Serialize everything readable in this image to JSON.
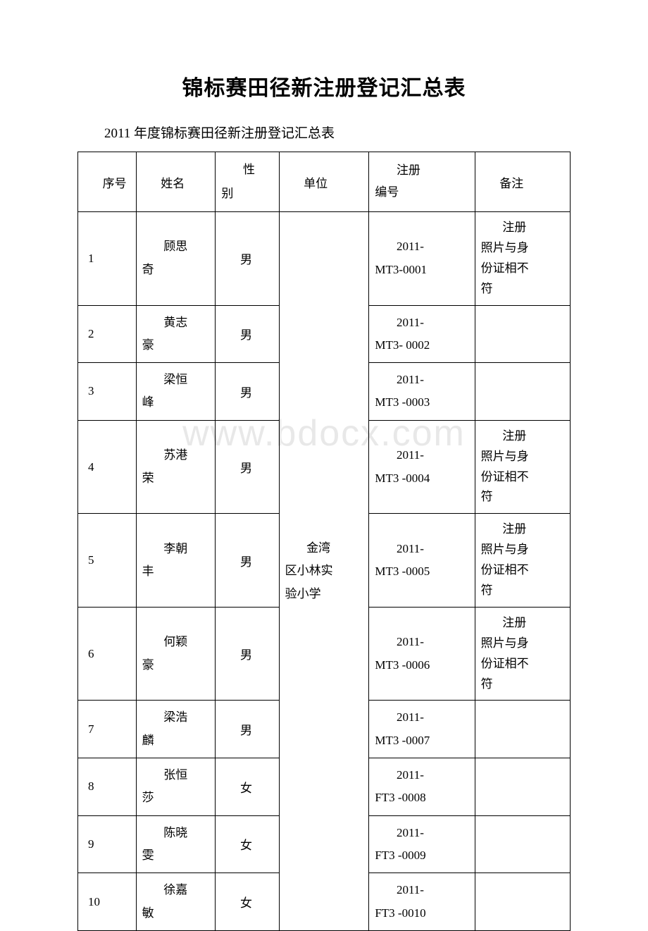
{
  "document": {
    "title": "锦标赛田径新注册登记汇总表",
    "subtitle": "2011 年度锦标赛田径新注册登记汇总表",
    "watermark": "www.bdocx.com",
    "table": {
      "columns": {
        "seq": "序号",
        "name": "姓名",
        "gender_l1": "性",
        "gender_l2": "别",
        "unit": "单位",
        "regno_l1": "注册",
        "regno_l2": "编号",
        "note": "备注"
      },
      "unit_merged_l1": "金湾",
      "unit_merged_l2": "区小林实",
      "unit_merged_l3": "验小学",
      "rows": [
        {
          "seq": "1",
          "name_l1": "顾思",
          "name_l2": "奇",
          "gender": "男",
          "reg_l1": "2011-",
          "reg_l2": "MT3-0001",
          "note_l1": "注册",
          "note_l2": "照片与身",
          "note_l3": "份证相不",
          "note_l4": "符",
          "has_note": true
        },
        {
          "seq": "2",
          "name_l1": "黄志",
          "name_l2": "豪",
          "gender": "男",
          "reg_l1": "2011-",
          "reg_l2": "MT3- 0002",
          "has_note": false
        },
        {
          "seq": "3",
          "name_l1": "梁恒",
          "name_l2": "峰",
          "gender": "男",
          "reg_l1": "2011-",
          "reg_l2": "MT3 -0003",
          "has_note": false
        },
        {
          "seq": "4",
          "name_l1": "苏港",
          "name_l2": "荣",
          "gender": "男",
          "reg_l1": "2011-",
          "reg_l2": "MT3 -0004",
          "note_l1": "注册",
          "note_l2": "照片与身",
          "note_l3": "份证相不",
          "note_l4": "符",
          "has_note": true
        },
        {
          "seq": "5",
          "name_l1": "李朝",
          "name_l2": "丰",
          "gender": "男",
          "reg_l1": "2011-",
          "reg_l2": "MT3 -0005",
          "note_l1": "注册",
          "note_l2": "照片与身",
          "note_l3": "份证相不",
          "note_l4": "符",
          "has_note": true
        },
        {
          "seq": "6",
          "name_l1": "何颖",
          "name_l2": "豪",
          "gender": "男",
          "reg_l1": "2011-",
          "reg_l2": "MT3 -0006",
          "note_l1": "注册",
          "note_l2": "照片与身",
          "note_l3": "份证相不",
          "note_l4": "符",
          "has_note": true
        },
        {
          "seq": "7",
          "name_l1": "梁浩",
          "name_l2": "麟",
          "gender": "男",
          "reg_l1": "2011-",
          "reg_l2": "MT3 -0007",
          "has_note": false
        },
        {
          "seq": "8",
          "name_l1": "张恒",
          "name_l2": "莎",
          "gender": "女",
          "reg_l1": "2011-",
          "reg_l2": "FT3 -0008",
          "has_note": false
        },
        {
          "seq": "9",
          "name_l1": "陈晓",
          "name_l2": "雯",
          "gender": "女",
          "reg_l1": "2011-",
          "reg_l2": "FT3 -0009",
          "has_note": false
        },
        {
          "seq": "10",
          "name_l1": "徐嘉",
          "name_l2": "敏",
          "gender": "女",
          "reg_l1": "2011-",
          "reg_l2": "FT3 -0010",
          "has_note": false
        }
      ]
    }
  }
}
